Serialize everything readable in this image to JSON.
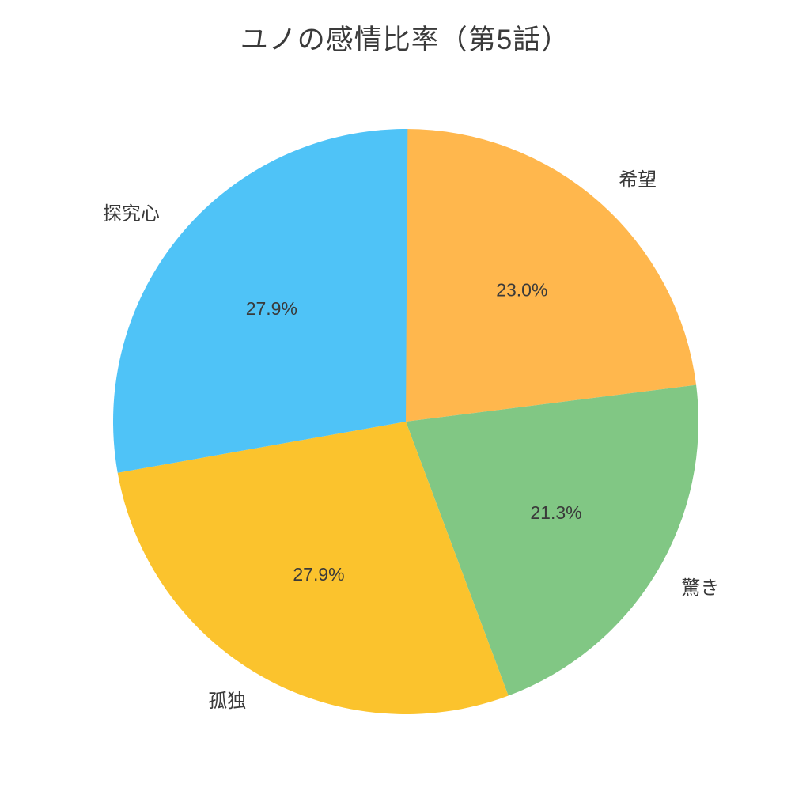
{
  "chart_data": {
    "type": "pie",
    "title": "ユノの感情比率（第5話）",
    "slices": [
      {
        "label": "希望",
        "value": 23.0,
        "pct_label": "23.0%",
        "color": "#FFB74D"
      },
      {
        "label": "驚き",
        "value": 21.3,
        "pct_label": "21.3%",
        "color": "#81C784"
      },
      {
        "label": "孤独",
        "value": 27.9,
        "pct_label": "27.9%",
        "color": "#FBC32D"
      },
      {
        "label": "探究心",
        "value": 27.9,
        "pct_label": "27.9%",
        "color": "#4FC3F7"
      }
    ],
    "start_angle_deg": 90,
    "direction": "clockwise",
    "label_distance": 1.1,
    "pct_distance": 0.6,
    "legend": false,
    "background": "#FFFFFF",
    "text_color": "#3A3A3A"
  }
}
